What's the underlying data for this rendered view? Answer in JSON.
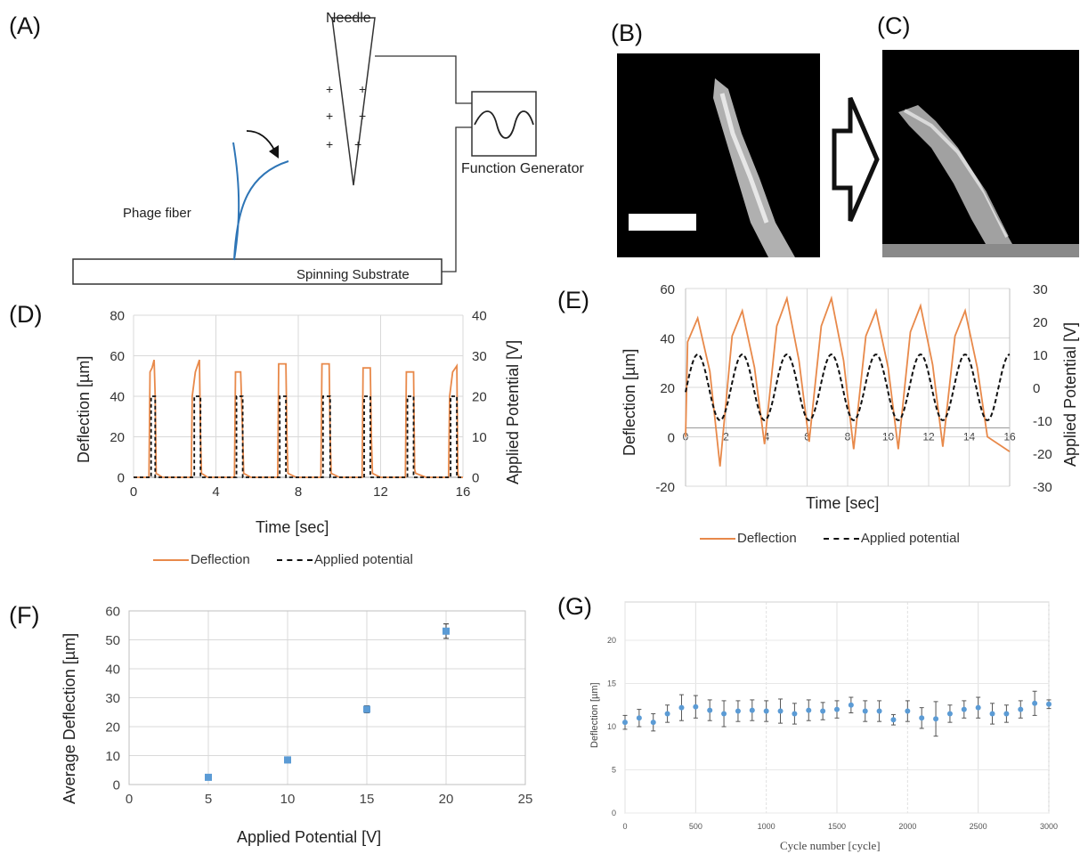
{
  "panels": {
    "A": "(A)",
    "B": "(B)",
    "C": "(C)",
    "D": "(D)",
    "E": "(E)",
    "F": "(F)",
    "G": "(G)"
  },
  "colors": {
    "deflection": "#E8894A",
    "potential": "#111111",
    "marker": "#5B9BD5",
    "fiber": "#2E75B6",
    "grid": "#D9D9D9"
  },
  "schematic": {
    "needle": "Needle",
    "phage_fiber": "Phage fiber",
    "function_generator": "Function Generator",
    "spinning_substrate": "Spinning Substrate",
    "charges": [
      "+",
      "+",
      "+",
      "+",
      "+",
      "+"
    ]
  },
  "micrographs": {
    "arrow": "hollow-right-arrow"
  },
  "chart_data": [
    {
      "id": "D",
      "type": "line",
      "xlabel": "Time [sec]",
      "ylabel": "Deflection [µm]",
      "y2label": "Applied Potential [V]",
      "xlim": [
        0,
        16
      ],
      "ylim": [
        0,
        80
      ],
      "y2lim": [
        0,
        40
      ],
      "xticks": [
        0,
        4,
        8,
        12,
        16
      ],
      "yticks": [
        0,
        20,
        40,
        60,
        80
      ],
      "y2ticks": [
        0,
        10,
        20,
        30,
        40
      ],
      "grid": true,
      "legend": [
        "Deflection",
        "Applied potential"
      ],
      "series": [
        {
          "name": "Deflection",
          "axis": "y",
          "x": [
            0,
            0.75,
            0.8,
            0.9,
            1.0,
            1.05,
            1.1,
            1.4,
            2.8,
            2.85,
            3.0,
            3.2,
            3.25,
            3.3,
            3.6,
            4.9,
            4.95,
            5.1,
            5.2,
            5.3,
            5.35,
            5.7,
            7.0,
            7.05,
            7.2,
            7.4,
            7.45,
            7.5,
            7.9,
            9.1,
            9.15,
            9.3,
            9.5,
            9.55,
            9.6,
            10.0,
            11.1,
            11.15,
            11.3,
            11.5,
            11.55,
            11.6,
            12.0,
            13.2,
            13.25,
            13.4,
            13.6,
            13.65,
            13.7,
            14.2,
            15.3,
            15.35,
            15.5,
            15.7,
            15.75,
            15.8,
            16.0
          ],
          "values": [
            0,
            0,
            52,
            54,
            58,
            40,
            2,
            0,
            0,
            40,
            52,
            58,
            20,
            2,
            0,
            0,
            52,
            52,
            52,
            20,
            2,
            0,
            0,
            56,
            56,
            56,
            20,
            2,
            0,
            0,
            56,
            56,
            56,
            20,
            2,
            0,
            0,
            54,
            54,
            54,
            20,
            2,
            0,
            0,
            52,
            52,
            52,
            4,
            2,
            0,
            0,
            40,
            52,
            55,
            2,
            0,
            0
          ]
        },
        {
          "name": "Applied potential",
          "axis": "y2",
          "x": [
            0,
            0.85,
            0.85,
            1.05,
            1.05,
            2.95,
            2.95,
            3.25,
            3.25,
            5.0,
            5.0,
            5.3,
            5.3,
            7.1,
            7.1,
            7.4,
            7.4,
            9.2,
            9.2,
            9.55,
            9.55,
            11.2,
            11.2,
            11.5,
            11.5,
            13.3,
            13.3,
            13.6,
            13.6,
            15.4,
            15.4,
            15.7,
            15.7,
            16.0
          ],
          "values": [
            0,
            0,
            20,
            20,
            0,
            0,
            20,
            20,
            0,
            0,
            20,
            20,
            0,
            0,
            20,
            20,
            0,
            0,
            20,
            20,
            0,
            0,
            20,
            20,
            0,
            0,
            20,
            20,
            0,
            0,
            20,
            20,
            0,
            0
          ]
        }
      ]
    },
    {
      "id": "E",
      "type": "line",
      "xlabel": "Time [sec]",
      "ylabel": "Deflection [µm]",
      "y2label": "Applied Potential [V]",
      "xlim": [
        0,
        16
      ],
      "ylim": [
        -20,
        60
      ],
      "y2lim": [
        -30,
        30
      ],
      "xticks": [
        0,
        2,
        4,
        6,
        8,
        10,
        12,
        14,
        16
      ],
      "yticks": [
        -20,
        0,
        20,
        40,
        60
      ],
      "y2ticks": [
        -30,
        -20,
        -10,
        0,
        10,
        20,
        30
      ],
      "grid": true,
      "legend": [
        "Deflection",
        "Applied potential"
      ],
      "series": [
        {
          "name": "Deflection",
          "axis": "y",
          "peaks": [
            48,
            51,
            56,
            56,
            51,
            53,
            51
          ],
          "troughs": [
            -12,
            -3,
            -2,
            -5,
            -5,
            -4,
            0,
            -6
          ],
          "start": 0
        },
        {
          "name": "Applied potential",
          "axis": "y2",
          "amplitude": 10,
          "period_sec": 2.2
        }
      ]
    },
    {
      "id": "F",
      "type": "scatter",
      "xlabel": "Applied Potential [V]",
      "ylabel": "Average Deflection [µm]",
      "xlim": [
        0,
        25
      ],
      "ylim": [
        0,
        60
      ],
      "xticks": [
        0,
        5,
        10,
        15,
        20,
        25
      ],
      "yticks": [
        0,
        10,
        20,
        30,
        40,
        50,
        60
      ],
      "grid": true,
      "points": [
        {
          "x": 5,
          "y": 2.5,
          "err": 0.5
        },
        {
          "x": 10,
          "y": 8.5,
          "err": 1.0
        },
        {
          "x": 15,
          "y": 26,
          "err": 1.2
        },
        {
          "x": 20,
          "y": 53,
          "err": 2.5
        }
      ]
    },
    {
      "id": "G",
      "type": "scatter",
      "xlabel": "Cycle number  [cycle]",
      "ylabel": "Deflection [µm]",
      "xlim": [
        0,
        3000
      ],
      "ylim": [
        0,
        20
      ],
      "xticks": [
        0,
        500,
        1000,
        1500,
        2000,
        2500,
        3000
      ],
      "yticks": [
        0,
        5,
        10,
        15,
        20
      ],
      "grid": true,
      "x": [
        0,
        100,
        200,
        300,
        400,
        500,
        600,
        700,
        800,
        900,
        1000,
        1100,
        1200,
        1300,
        1400,
        1500,
        1600,
        1700,
        1800,
        1900,
        2000,
        2100,
        2200,
        2300,
        2400,
        2500,
        2600,
        2700,
        2800,
        2900,
        3000
      ],
      "values": [
        10.5,
        11.0,
        10.5,
        11.5,
        12.2,
        12.3,
        11.9,
        11.5,
        11.8,
        11.9,
        11.8,
        11.8,
        11.5,
        11.9,
        11.8,
        12.0,
        12.5,
        11.8,
        11.8,
        10.8,
        11.8,
        11.0,
        10.9,
        11.5,
        12.0,
        12.2,
        11.5,
        11.5,
        12.0,
        12.7,
        12.6
      ],
      "errors": [
        0.8,
        1.0,
        1.0,
        1.0,
        1.5,
        1.3,
        1.2,
        1.5,
        1.2,
        1.2,
        1.2,
        1.4,
        1.2,
        1.2,
        1.0,
        1.0,
        0.9,
        1.2,
        1.2,
        0.6,
        1.2,
        1.2,
        2.0,
        1.0,
        1.0,
        1.2,
        1.2,
        1.0,
        1.0,
        1.4,
        0.5
      ]
    }
  ]
}
